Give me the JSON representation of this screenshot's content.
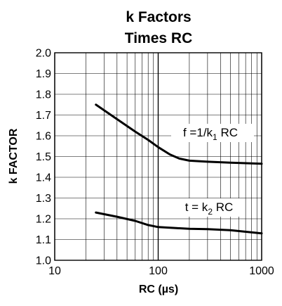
{
  "chart_data": {
    "type": "line",
    "title": [
      "k Factors",
      "Times RC"
    ],
    "xlabel": "RC (µs)",
    "ylabel": "k FACTOR",
    "xscale": "log",
    "xlim": [
      10,
      1000
    ],
    "ylim": [
      1.0,
      2.0
    ],
    "xticks": [
      "10",
      "100",
      "1000"
    ],
    "yticks": [
      "1.0",
      "1.1",
      "1.2",
      "1.3",
      "1.4",
      "1.5",
      "1.6",
      "1.7",
      "1.8",
      "1.9",
      "2.0"
    ],
    "grid": true,
    "series": [
      {
        "label_main": "f =1/k",
        "label_sub": "1",
        "label_tail": " RC",
        "x": [
          25,
          40,
          60,
          80,
          100,
          130,
          160,
          200,
          300,
          500,
          1000
        ],
        "y": [
          1.75,
          1.68,
          1.62,
          1.58,
          1.545,
          1.51,
          1.49,
          1.48,
          1.475,
          1.47,
          1.465
        ]
      },
      {
        "label_main": "t = k",
        "label_sub": "2",
        "label_tail": " RC",
        "x": [
          25,
          40,
          60,
          80,
          100,
          150,
          200,
          300,
          500,
          1000
        ],
        "y": [
          1.23,
          1.21,
          1.19,
          1.17,
          1.16,
          1.155,
          1.152,
          1.15,
          1.145,
          1.13
        ]
      }
    ]
  }
}
